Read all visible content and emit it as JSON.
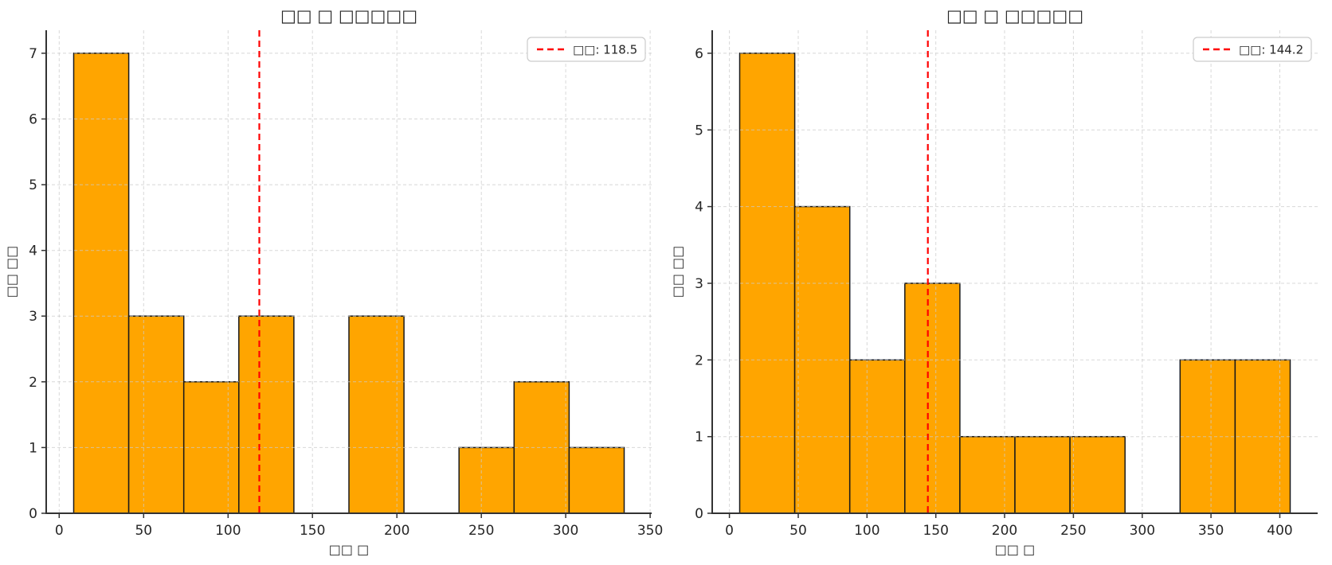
{
  "style": {
    "background": "#ffffff",
    "bar_fill": "#ffa500",
    "bar_edge": "#1a1a1a",
    "mean_line_color": "#ff0000",
    "grid_color": "#cccccc",
    "spine_color": "#333333",
    "text_color": "#262626",
    "legend_border": "#cccccc",
    "legend_background": "#ffffff"
  },
  "chart_data": [
    {
      "type": "histogram",
      "title": "□□ □ □□□□□",
      "xlabel": "□□ □",
      "ylabel": "□□ □□",
      "legend_label": "□□: 118.5",
      "legend_position": "upper-right",
      "mean": 118.5,
      "bin_edges": [
        8.6,
        41.2,
        73.8,
        106.4,
        139.0,
        171.6,
        204.2,
        236.8,
        269.4,
        302.0,
        334.6
      ],
      "counts": [
        7,
        3,
        2,
        3,
        0,
        3,
        0,
        1,
        2,
        1
      ],
      "xticks": [
        0,
        50,
        100,
        150,
        200,
        250,
        300,
        350
      ],
      "yticks": [
        0,
        1,
        2,
        3,
        4,
        5,
        6,
        7
      ],
      "xlim": [
        -7.7,
        350.9
      ],
      "ylim": [
        0,
        7.35
      ],
      "grid": true
    },
    {
      "type": "histogram",
      "title": "□□ □ □□□□□",
      "xlabel": "□□ □",
      "ylabel": "□□ □□",
      "legend_label": "□□: 144.2",
      "legend_position": "upper-right",
      "mean": 144.2,
      "bin_edges": [
        7.5,
        47.5,
        87.5,
        127.5,
        167.5,
        207.5,
        247.5,
        287.5,
        327.5,
        367.5,
        407.5
      ],
      "counts": [
        6,
        4,
        2,
        3,
        1,
        1,
        1,
        0,
        2,
        2
      ],
      "xticks": [
        0,
        50,
        100,
        150,
        200,
        250,
        300,
        350,
        400
      ],
      "yticks": [
        0,
        1,
        2,
        3,
        4,
        5,
        6
      ],
      "xlim": [
        -12.5,
        427.5
      ],
      "ylim": [
        0,
        6.3
      ],
      "grid": true
    }
  ]
}
